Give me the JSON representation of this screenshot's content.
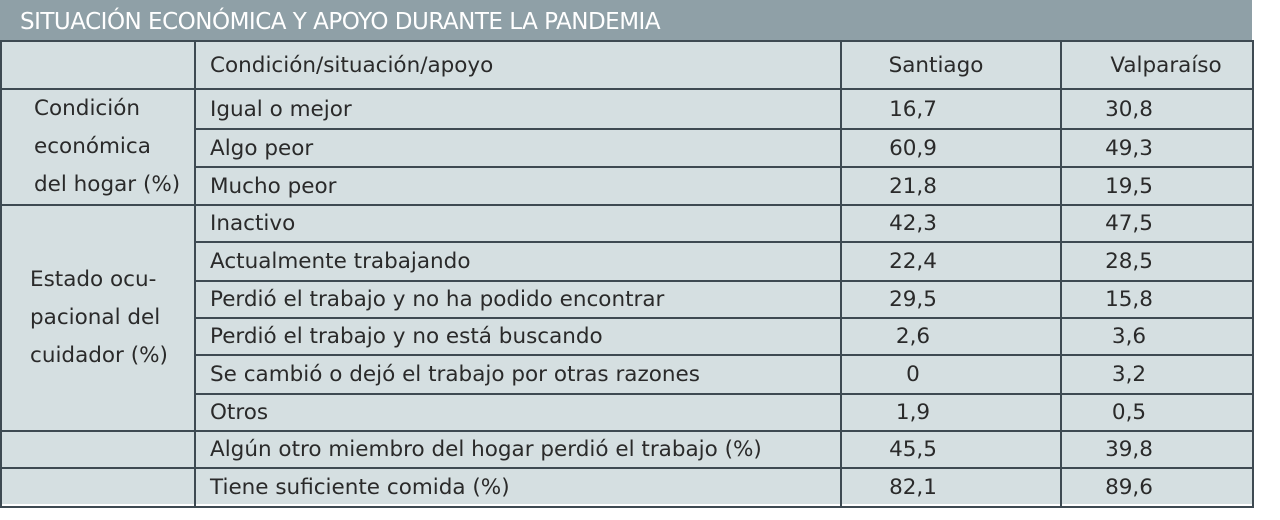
{
  "title": "SITUACIÓN ECONÓMICA Y APOYO DURANTE LA PANDEMIA",
  "header": {
    "group": "",
    "condition": "Condición/situación/apoyo",
    "santiago": "Santiago",
    "valparaiso": "Valparaíso"
  },
  "groups": [
    {
      "label_lines": [
        "Condición",
        "económica",
        "del hogar (%)"
      ],
      "rows": [
        {
          "label": "Igual o mejor",
          "santiago": "16,7",
          "valparaiso": "30,8"
        },
        {
          "label": "Algo peor",
          "santiago": "60,9",
          "valparaiso": "49,3"
        },
        {
          "label": "Mucho peor",
          "santiago": "21,8",
          "valparaiso": "19,5"
        }
      ]
    },
    {
      "label_lines": [
        "Estado ocu-",
        "pacional del",
        "cuidador (%)"
      ],
      "rows": [
        {
          "label": "Inactivo",
          "santiago": "42,3",
          "valparaiso": "47,5"
        },
        {
          "label": "Actualmente trabajando",
          "santiago": "22,4",
          "valparaiso": "28,5"
        },
        {
          "label": "Perdió el trabajo y no ha podido encontrar",
          "santiago": "29,5",
          "valparaiso": "15,8"
        },
        {
          "label": "Perdió el trabajo y no está buscando",
          "santiago": "2,6",
          "valparaiso": "3,6"
        },
        {
          "label": "Se cambió o dejó el trabajo por otras razones",
          "santiago": "0",
          "valparaiso": "3,2"
        },
        {
          "label": "Otros",
          "santiago": "1,9",
          "valparaiso": "0,5"
        }
      ]
    }
  ],
  "extra_rows": [
    {
      "label": "Algún otro miembro del hogar perdió el trabajo (%)",
      "santiago": "45,5",
      "valparaiso": "39,8"
    },
    {
      "label": "Tiene suficiente comida (%)",
      "santiago": "82,1",
      "valparaiso": "89,6"
    }
  ],
  "colors": {
    "title_background": "#8fa0a7",
    "table_background": "#d5dfe1",
    "border": "#3e4a52",
    "text": "#2a2a2a"
  }
}
